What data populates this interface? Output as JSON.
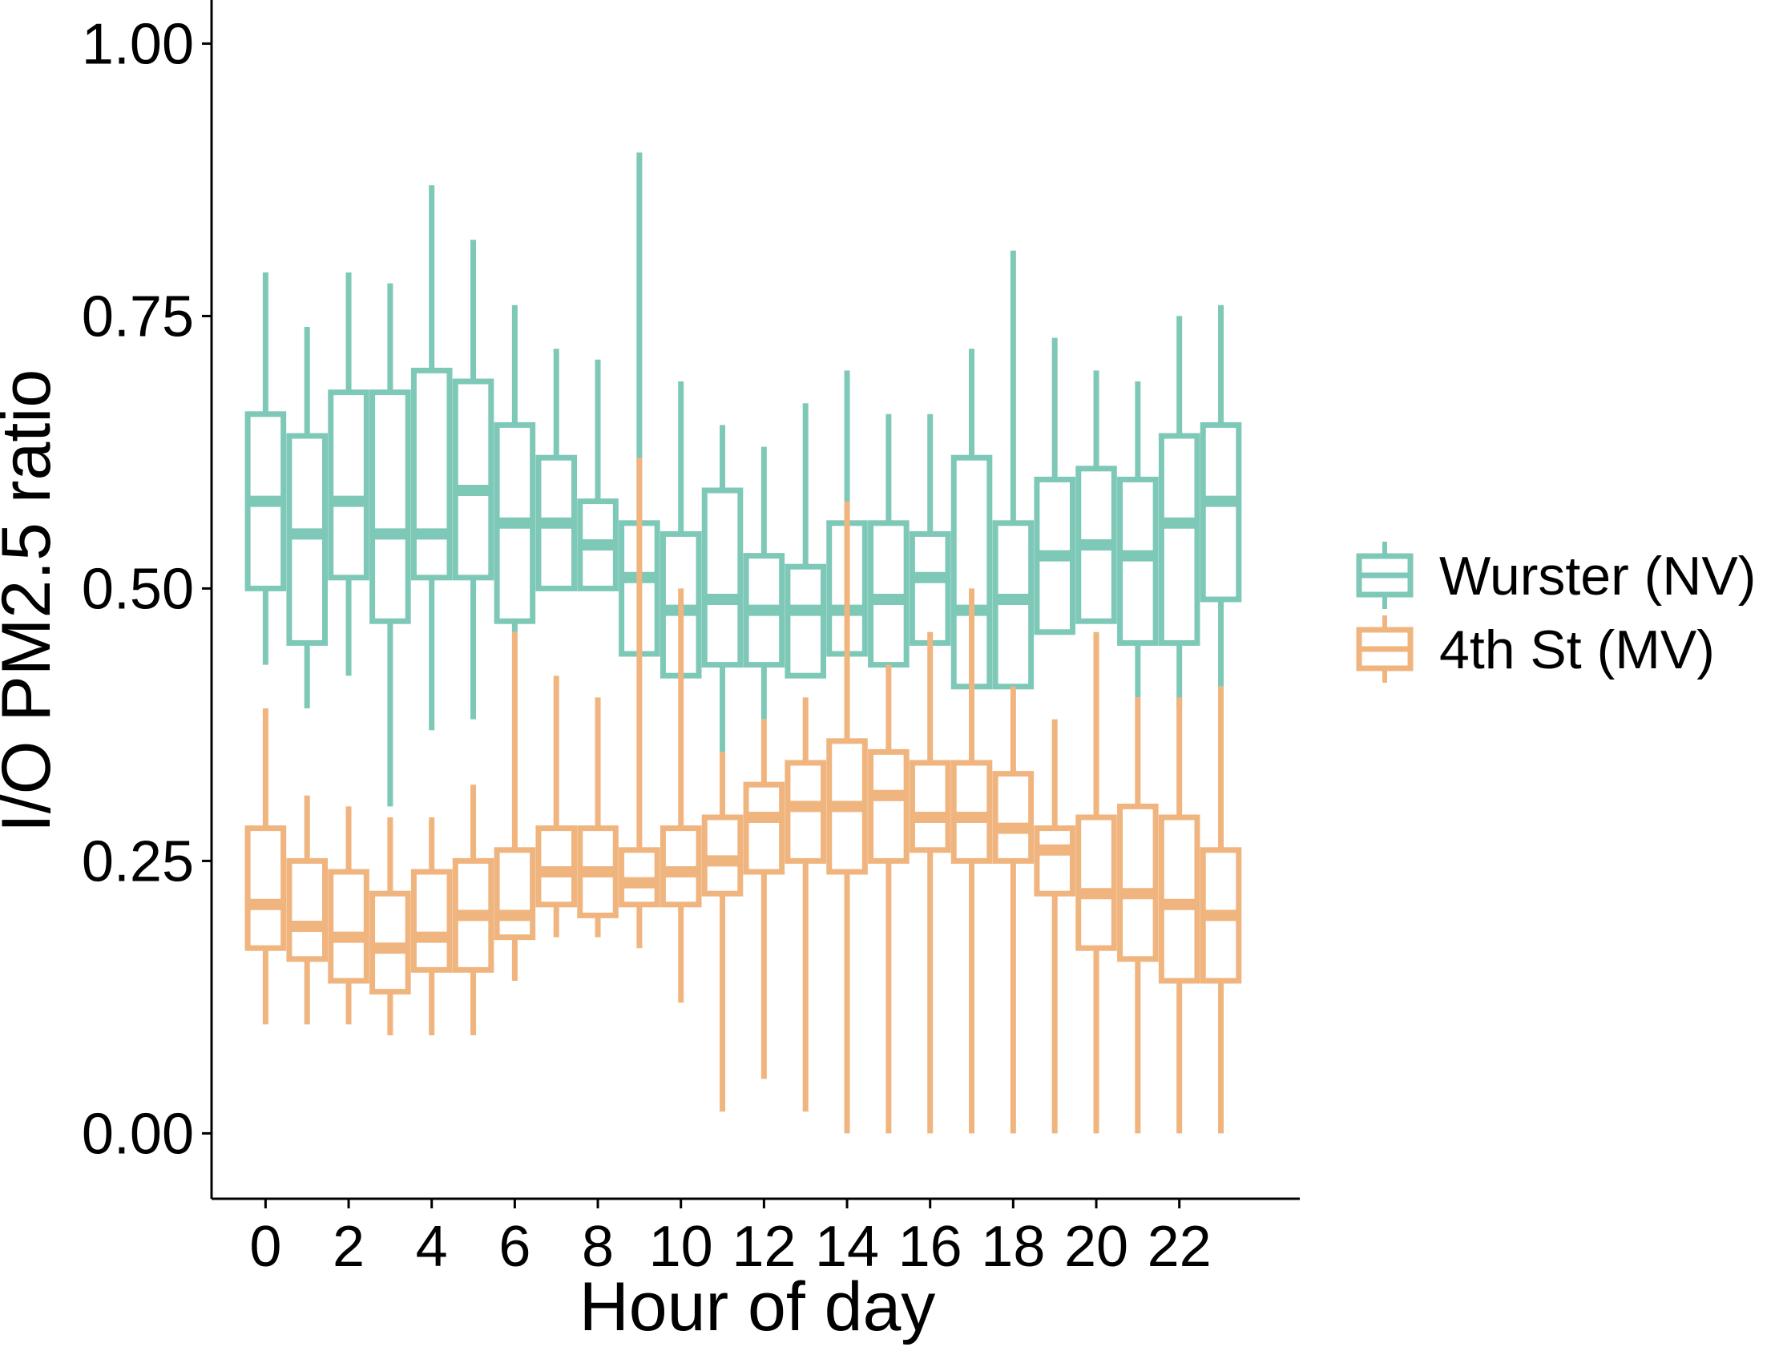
{
  "chart_data": {
    "type": "boxplot",
    "title": "",
    "xlabel": "Hour of day",
    "ylabel": "I/O PM2.5 ratio",
    "ylim": [
      -0.06,
      1.04
    ],
    "xlim": [
      -1.3,
      24.9
    ],
    "y_ticks": [
      0.0,
      0.25,
      0.5,
      0.75,
      1.0
    ],
    "y_tick_labels": [
      "0.00",
      "0.25",
      "0.50",
      "0.75",
      "1.00"
    ],
    "x_ticks": [
      0,
      2,
      4,
      6,
      8,
      10,
      12,
      14,
      16,
      18,
      20,
      22
    ],
    "x_tick_labels": [
      "0",
      "2",
      "4",
      "6",
      "8",
      "10",
      "12",
      "14",
      "16",
      "18",
      "20",
      "22"
    ],
    "grid": false,
    "legend_position": "right",
    "series": [
      {
        "name": "Wurster (NV)",
        "color": "#7ec8b8",
        "boxes": [
          {
            "hour": 0,
            "min": 0.43,
            "q1": 0.5,
            "median": 0.58,
            "q3": 0.66,
            "max": 0.79
          },
          {
            "hour": 1,
            "min": 0.39,
            "q1": 0.45,
            "median": 0.55,
            "q3": 0.64,
            "max": 0.74
          },
          {
            "hour": 2,
            "min": 0.42,
            "q1": 0.51,
            "median": 0.58,
            "q3": 0.68,
            "max": 0.79
          },
          {
            "hour": 3,
            "min": 0.3,
            "q1": 0.47,
            "median": 0.55,
            "q3": 0.68,
            "max": 0.78
          },
          {
            "hour": 4,
            "min": 0.37,
            "q1": 0.51,
            "median": 0.55,
            "q3": 0.7,
            "max": 0.87
          },
          {
            "hour": 5,
            "min": 0.38,
            "q1": 0.51,
            "median": 0.59,
            "q3": 0.69,
            "max": 0.82
          },
          {
            "hour": 6,
            "min": 0.46,
            "q1": 0.47,
            "median": 0.56,
            "q3": 0.65,
            "max": 0.76
          },
          {
            "hour": 7,
            "min": 0.5,
            "q1": 0.5,
            "median": 0.56,
            "q3": 0.62,
            "max": 0.72
          },
          {
            "hour": 8,
            "min": 0.5,
            "q1": 0.5,
            "median": 0.54,
            "q3": 0.58,
            "max": 0.71
          },
          {
            "hour": 9,
            "min": 0.44,
            "q1": 0.44,
            "median": 0.51,
            "q3": 0.56,
            "max": 0.9
          },
          {
            "hour": 10,
            "min": 0.42,
            "q1": 0.42,
            "median": 0.48,
            "q3": 0.55,
            "max": 0.69
          },
          {
            "hour": 11,
            "min": 0.35,
            "q1": 0.43,
            "median": 0.49,
            "q3": 0.59,
            "max": 0.65
          },
          {
            "hour": 12,
            "min": 0.38,
            "q1": 0.43,
            "median": 0.48,
            "q3": 0.53,
            "max": 0.63
          },
          {
            "hour": 13,
            "min": 0.42,
            "q1": 0.42,
            "median": 0.48,
            "q3": 0.52,
            "max": 0.67
          },
          {
            "hour": 14,
            "min": 0.44,
            "q1": 0.44,
            "median": 0.48,
            "q3": 0.56,
            "max": 0.7
          },
          {
            "hour": 15,
            "min": 0.43,
            "q1": 0.43,
            "median": 0.49,
            "q3": 0.56,
            "max": 0.66
          },
          {
            "hour": 16,
            "min": 0.45,
            "q1": 0.45,
            "median": 0.51,
            "q3": 0.55,
            "max": 0.66
          },
          {
            "hour": 17,
            "min": 0.41,
            "q1": 0.41,
            "median": 0.48,
            "q3": 0.62,
            "max": 0.72
          },
          {
            "hour": 18,
            "min": 0.41,
            "q1": 0.41,
            "median": 0.49,
            "q3": 0.56,
            "max": 0.81
          },
          {
            "hour": 19,
            "min": 0.46,
            "q1": 0.46,
            "median": 0.53,
            "q3": 0.6,
            "max": 0.73
          },
          {
            "hour": 20,
            "min": 0.47,
            "q1": 0.47,
            "median": 0.54,
            "q3": 0.61,
            "max": 0.7
          },
          {
            "hour": 21,
            "min": 0.4,
            "q1": 0.45,
            "median": 0.53,
            "q3": 0.6,
            "max": 0.69
          },
          {
            "hour": 22,
            "min": 0.39,
            "q1": 0.45,
            "median": 0.56,
            "q3": 0.64,
            "max": 0.75
          },
          {
            "hour": 23,
            "min": 0.41,
            "q1": 0.49,
            "median": 0.58,
            "q3": 0.65,
            "max": 0.76
          }
        ]
      },
      {
        "name": "4th St (MV)",
        "color": "#f0b47f",
        "boxes": [
          {
            "hour": 0,
            "min": 0.1,
            "q1": 0.17,
            "median": 0.21,
            "q3": 0.28,
            "max": 0.39
          },
          {
            "hour": 1,
            "min": 0.1,
            "q1": 0.16,
            "median": 0.19,
            "q3": 0.25,
            "max": 0.31
          },
          {
            "hour": 2,
            "min": 0.1,
            "q1": 0.14,
            "median": 0.18,
            "q3": 0.24,
            "max": 0.3
          },
          {
            "hour": 3,
            "min": 0.09,
            "q1": 0.13,
            "median": 0.17,
            "q3": 0.22,
            "max": 0.29
          },
          {
            "hour": 4,
            "min": 0.09,
            "q1": 0.15,
            "median": 0.18,
            "q3": 0.24,
            "max": 0.29
          },
          {
            "hour": 5,
            "min": 0.09,
            "q1": 0.15,
            "median": 0.2,
            "q3": 0.25,
            "max": 0.32
          },
          {
            "hour": 6,
            "min": 0.14,
            "q1": 0.18,
            "median": 0.2,
            "q3": 0.26,
            "max": 0.46
          },
          {
            "hour": 7,
            "min": 0.18,
            "q1": 0.21,
            "median": 0.24,
            "q3": 0.28,
            "max": 0.42
          },
          {
            "hour": 8,
            "min": 0.18,
            "q1": 0.2,
            "median": 0.24,
            "q3": 0.28,
            "max": 0.4
          },
          {
            "hour": 9,
            "min": 0.17,
            "q1": 0.21,
            "median": 0.23,
            "q3": 0.26,
            "max": 0.62
          },
          {
            "hour": 10,
            "min": 0.12,
            "q1": 0.21,
            "median": 0.24,
            "q3": 0.28,
            "max": 0.5
          },
          {
            "hour": 11,
            "min": 0.02,
            "q1": 0.22,
            "median": 0.25,
            "q3": 0.29,
            "max": 0.35
          },
          {
            "hour": 12,
            "min": 0.05,
            "q1": 0.24,
            "median": 0.29,
            "q3": 0.32,
            "max": 0.38
          },
          {
            "hour": 13,
            "min": 0.02,
            "q1": 0.25,
            "median": 0.3,
            "q3": 0.34,
            "max": 0.4
          },
          {
            "hour": 14,
            "min": 0.0,
            "q1": 0.24,
            "median": 0.3,
            "q3": 0.36,
            "max": 0.58
          },
          {
            "hour": 15,
            "min": 0.0,
            "q1": 0.25,
            "median": 0.31,
            "q3": 0.35,
            "max": 0.43
          },
          {
            "hour": 16,
            "min": 0.0,
            "q1": 0.26,
            "median": 0.29,
            "q3": 0.34,
            "max": 0.46
          },
          {
            "hour": 17,
            "min": 0.0,
            "q1": 0.25,
            "median": 0.29,
            "q3": 0.34,
            "max": 0.5
          },
          {
            "hour": 18,
            "min": 0.0,
            "q1": 0.25,
            "median": 0.28,
            "q3": 0.33,
            "max": 0.41
          },
          {
            "hour": 19,
            "min": 0.0,
            "q1": 0.22,
            "median": 0.26,
            "q3": 0.28,
            "max": 0.38
          },
          {
            "hour": 20,
            "min": 0.0,
            "q1": 0.17,
            "median": 0.22,
            "q3": 0.29,
            "max": 0.46
          },
          {
            "hour": 21,
            "min": 0.0,
            "q1": 0.16,
            "median": 0.22,
            "q3": 0.3,
            "max": 0.4
          },
          {
            "hour": 22,
            "min": 0.0,
            "q1": 0.14,
            "median": 0.21,
            "q3": 0.29,
            "max": 0.4
          },
          {
            "hour": 23,
            "min": 0.0,
            "q1": 0.14,
            "median": 0.2,
            "q3": 0.26,
            "max": 0.41
          }
        ]
      }
    ]
  }
}
